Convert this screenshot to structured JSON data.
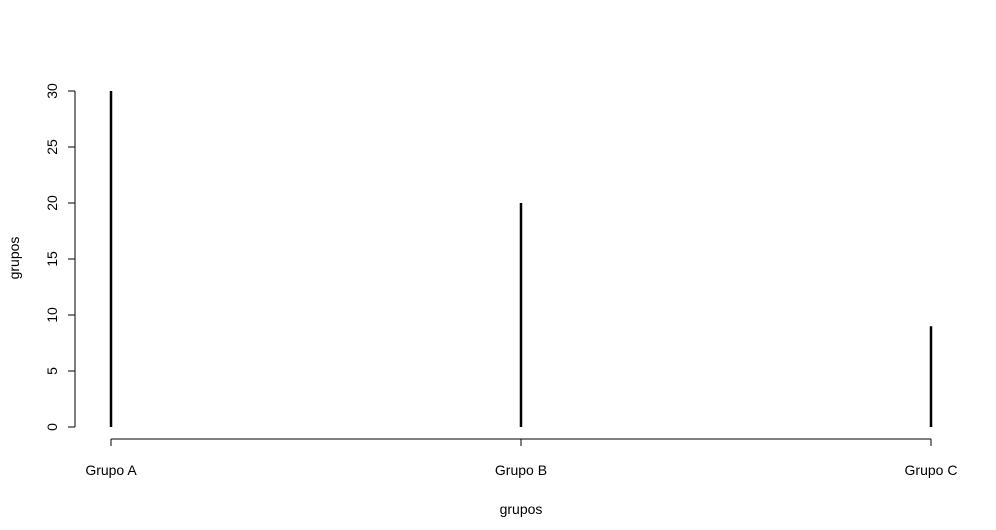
{
  "chart_data": {
    "type": "bar",
    "style": "vertical-lines",
    "title": "",
    "xlabel": "grupos",
    "ylabel": "grupos",
    "categories": [
      "Grupo A",
      "Grupo B",
      "Grupo C"
    ],
    "values": [
      30,
      20,
      9
    ],
    "ylim": [
      0,
      30
    ],
    "yticks": [
      "0",
      "5",
      "10",
      "15",
      "20",
      "25",
      "30"
    ],
    "grid": false,
    "legend": "none",
    "bar_color": "#000000"
  }
}
